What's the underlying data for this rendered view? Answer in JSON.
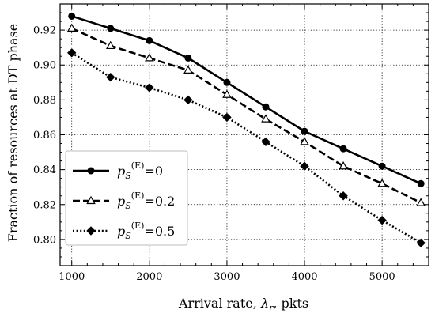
{
  "chart_data": {
    "type": "line",
    "title": "",
    "xlabel": "Arrival rate, λ_r, pkts",
    "xlabel_parts": {
      "prefix": "Arrival rate, ",
      "symbol": "λ",
      "sub": "r",
      "suffix": ", pkts"
    },
    "ylabel": "Fraction of resources at DT phase",
    "xlim": [
      850,
      5600
    ],
    "ylim": [
      0.785,
      0.935
    ],
    "x_ticks": [
      1000,
      2000,
      3000,
      4000,
      5000
    ],
    "x_tick_labels": [
      "1000",
      "2000",
      "3000",
      "4000",
      "5000"
    ],
    "y_ticks": [
      0.8,
      0.82,
      0.84,
      0.86,
      0.88,
      0.9,
      0.92
    ],
    "y_tick_labels": [
      "0.80",
      "0.82",
      "0.84",
      "0.86",
      "0.88",
      "0.90",
      "0.92"
    ],
    "grid": true,
    "legend_position": "lower-left",
    "x": [
      1000,
      1500,
      2000,
      2500,
      3000,
      3500,
      4000,
      4500,
      5000,
      5500
    ],
    "series": [
      {
        "name": "p_S^(E)=0",
        "label_main": "p",
        "label_sub": "S",
        "label_sup": "(E)",
        "label_value": "=0",
        "marker": "filled-circle",
        "line_style": "solid",
        "color": "#000000",
        "values": [
          0.928,
          0.921,
          0.914,
          0.904,
          0.89,
          0.876,
          0.862,
          0.852,
          0.842,
          0.832
        ]
      },
      {
        "name": "p_S^(E)=0.2",
        "label_main": "p",
        "label_sub": "S",
        "label_sup": "(E)",
        "label_value": "=0.2",
        "marker": "open-triangle",
        "line_style": "dashed",
        "color": "#000000",
        "values": [
          0.921,
          0.911,
          0.904,
          0.897,
          0.883,
          0.869,
          0.856,
          0.842,
          0.832,
          0.821
        ]
      },
      {
        "name": "p_S^(E)=0.5",
        "label_main": "p",
        "label_sub": "S",
        "label_sup": "(E)",
        "label_value": "=0.5",
        "marker": "filled-diamond",
        "line_style": "dotted",
        "color": "#000000",
        "values": [
          0.907,
          0.893,
          0.887,
          0.88,
          0.87,
          0.856,
          0.842,
          0.825,
          0.811,
          0.798
        ]
      }
    ]
  }
}
